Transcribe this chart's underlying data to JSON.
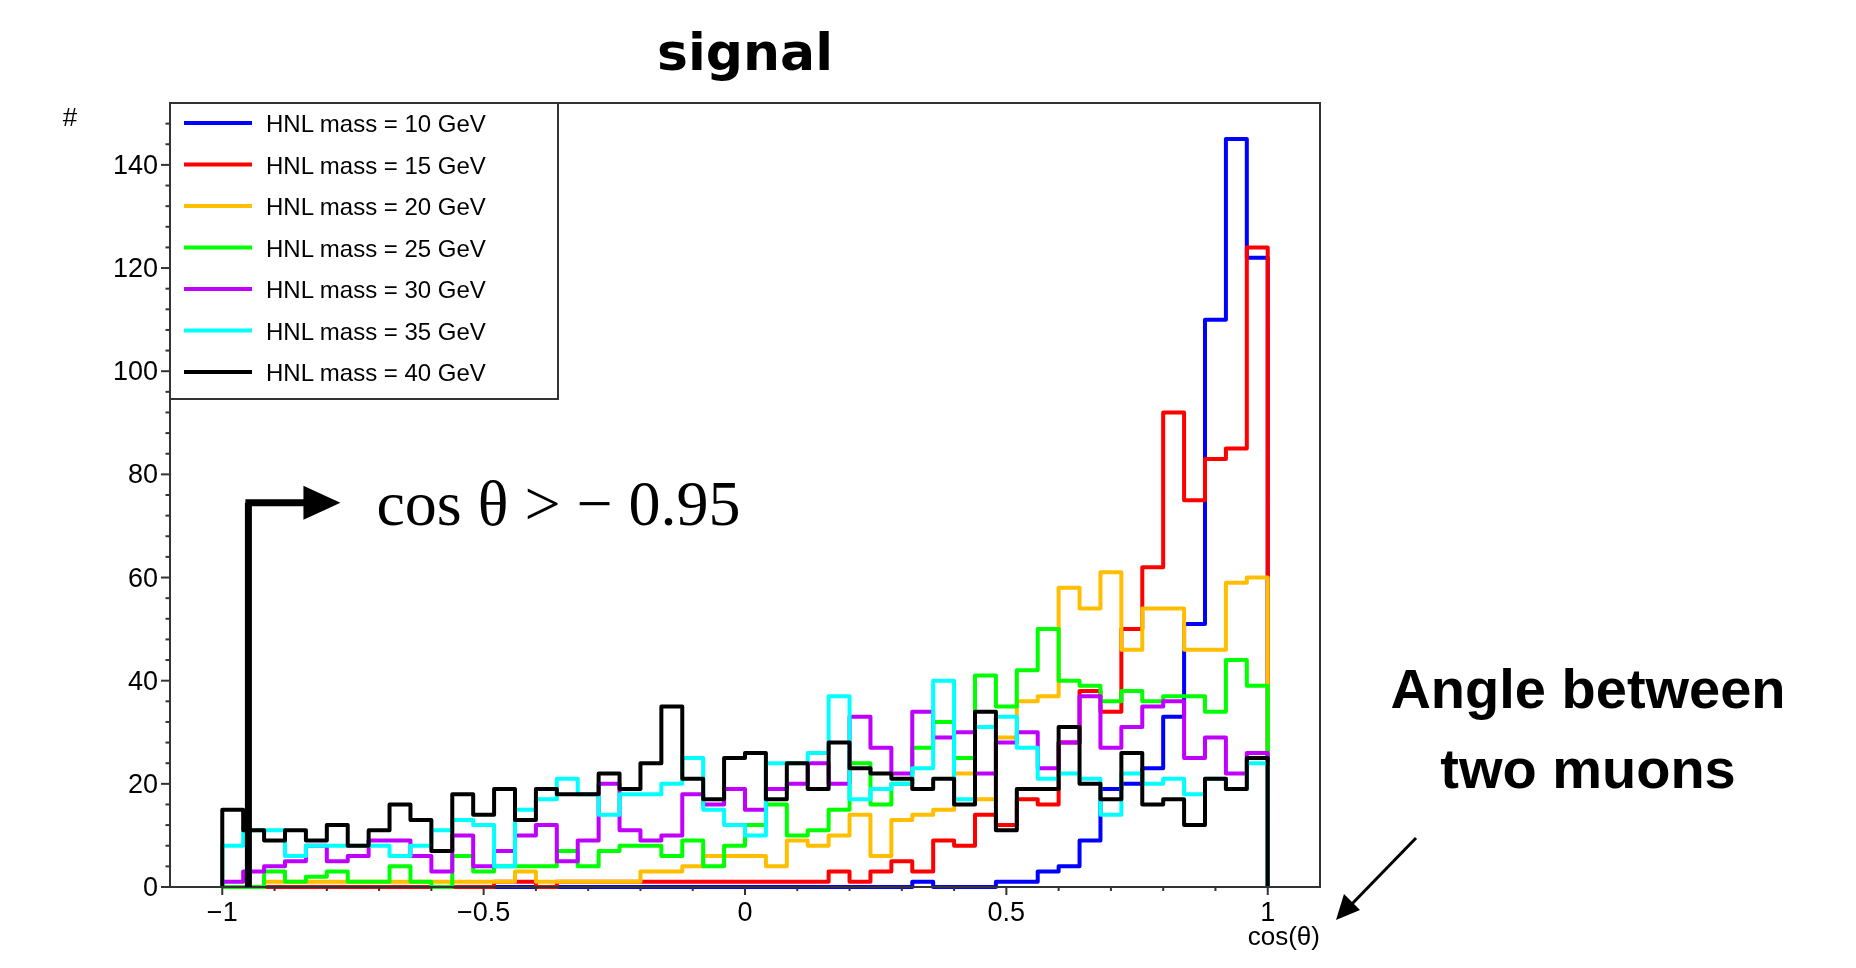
{
  "chart_data": {
    "type": "histogram",
    "title": "signal",
    "xlabel": "cos(θ)",
    "ylabel": "#",
    "bins": [
      -1,
      -0.96,
      -0.92,
      -0.88,
      -0.84,
      -0.8,
      -0.76,
      -0.72,
      -0.68,
      -0.64,
      -0.6,
      -0.56,
      -0.52,
      -0.48,
      -0.44,
      -0.4,
      -0.36,
      -0.32,
      -0.28,
      -0.24,
      -0.2,
      -0.16,
      -0.12,
      -0.08,
      -0.04,
      0,
      0.04,
      0.08,
      0.12,
      0.16,
      0.2,
      0.24,
      0.28,
      0.32,
      0.36,
      0.4,
      0.44,
      0.48,
      0.52,
      0.56,
      0.6,
      0.64,
      0.68,
      0.72,
      0.76,
      0.8,
      0.84,
      0.88,
      0.92,
      0.96,
      1
    ],
    "series": [
      {
        "name": "HNL mass = 10 GeV",
        "color": "#0000ff",
        "values": [
          0,
          0,
          0,
          0,
          0,
          0,
          0,
          0,
          0,
          0,
          0,
          0,
          0,
          0,
          0,
          0,
          0,
          0,
          0,
          0,
          0,
          0,
          0,
          0,
          0,
          0,
          0,
          0,
          0,
          0,
          0,
          0,
          0,
          1,
          0,
          0,
          0,
          1,
          1,
          3,
          4,
          9,
          19,
          20,
          23,
          33,
          51,
          110,
          145,
          122
        ]
      },
      {
        "name": "HNL mass = 15 GeV",
        "color": "#ff0000",
        "values": [
          0,
          0,
          0,
          0,
          0,
          0,
          0,
          0,
          0,
          0,
          0,
          0,
          0,
          1,
          1,
          0,
          1,
          1,
          1,
          1,
          1,
          1,
          1,
          1,
          1,
          1,
          1,
          1,
          1,
          3,
          1,
          3,
          5,
          3,
          9,
          8,
          14,
          12,
          17,
          16,
          28,
          38,
          34,
          50,
          62,
          92,
          75,
          83,
          85,
          124
        ]
      },
      {
        "name": "HNL mass = 20 GeV",
        "color": "#ffbf00",
        "values": [
          0,
          0,
          1,
          1,
          1,
          1,
          1,
          1,
          1,
          1,
          1,
          1,
          1,
          1,
          3,
          1,
          1,
          1,
          1,
          1,
          3,
          3,
          4,
          6,
          6,
          6,
          4,
          9,
          8,
          10,
          14,
          6,
          13,
          14,
          15,
          22,
          17,
          29,
          36,
          37,
          58,
          54,
          61,
          46,
          54,
          54,
          46,
          46,
          59,
          60
        ]
      },
      {
        "name": "HNL mass = 25 GeV",
        "color": "#00ff00",
        "values": [
          0,
          0,
          3,
          1,
          2,
          3,
          1,
          1,
          4,
          1,
          0,
          6,
          3,
          4,
          4,
          4,
          7,
          4,
          7,
          8,
          8,
          6,
          9,
          4,
          8,
          12,
          16,
          10,
          11,
          15,
          24,
          16,
          20,
          27,
          32,
          25,
          41,
          35,
          42,
          50,
          40,
          39,
          36,
          38,
          36,
          37,
          37,
          34,
          44,
          39
        ]
      },
      {
        "name": "HNL mass = 30 GeV",
        "color": "#bf00ff",
        "values": [
          1,
          3,
          4,
          5,
          8,
          5,
          6,
          9,
          9,
          6,
          3,
          10,
          4,
          7,
          10,
          12,
          5,
          9,
          20,
          11,
          9,
          10,
          18,
          16,
          19,
          15,
          19,
          20,
          24,
          20,
          33,
          27,
          22,
          34,
          29,
          30,
          22,
          28,
          30,
          23,
          28,
          37,
          27,
          31,
          35,
          36,
          25,
          29,
          22,
          26
        ]
      },
      {
        "name": "HNL mass = 35 GeV",
        "color": "#00ffff",
        "values": [
          8,
          11,
          11,
          6,
          8,
          8,
          8,
          8,
          6,
          8,
          11,
          13,
          12,
          4,
          15,
          17,
          21,
          18,
          14,
          18,
          18,
          20,
          25,
          15,
          12,
          10,
          24,
          24,
          26,
          37,
          17,
          19,
          20,
          23,
          40,
          17,
          31,
          33,
          27,
          21,
          22,
          21,
          14,
          22,
          20,
          21,
          18,
          21,
          19,
          24
        ]
      },
      {
        "name": "HNL mass = 40 GeV",
        "color": "#000000",
        "values": [
          15,
          11,
          9,
          11,
          9,
          12,
          8,
          11,
          16,
          13,
          7,
          18,
          14,
          19,
          13,
          19,
          18,
          18,
          22,
          19,
          24,
          35,
          21,
          17,
          25,
          26,
          17,
          24,
          19,
          28,
          23,
          22,
          21,
          19,
          21,
          16,
          34,
          11,
          19,
          19,
          31,
          20,
          17,
          26,
          16,
          17,
          12,
          21,
          19,
          25
        ]
      }
    ],
    "xlim": [
      -1.1,
      1.1
    ],
    "xticks": [
      {
        "value": -1,
        "label": "−1"
      },
      {
        "value": -0.9,
        "label": null
      },
      {
        "value": -0.8,
        "label": null
      },
      {
        "value": -0.7,
        "label": null
      },
      {
        "value": -0.6,
        "label": null
      },
      {
        "value": -0.5,
        "label": "−0.5"
      },
      {
        "value": -0.4,
        "label": null
      },
      {
        "value": -0.3,
        "label": null
      },
      {
        "value": -0.2,
        "label": null
      },
      {
        "value": -0.1,
        "label": null
      },
      0,
      {
        "value": 0.1,
        "label": null
      },
      {
        "value": 0.2,
        "label": null
      },
      {
        "value": 0.3,
        "label": null
      },
      {
        "value": 0.4,
        "label": null
      },
      0.5,
      {
        "value": 0.6,
        "label": null
      },
      {
        "value": 0.7,
        "label": null
      },
      {
        "value": 0.8,
        "label": null
      },
      {
        "value": 0.9,
        "label": null
      },
      1
    ],
    "ylim": [
      0,
      152
    ],
    "yticks": [
      0,
      {
        "value": 4,
        "label": null
      },
      {
        "value": 8,
        "label": null
      },
      {
        "value": 12,
        "label": null
      },
      {
        "value": 16,
        "label": null
      },
      20,
      {
        "value": 24,
        "label": null
      },
      {
        "value": 28,
        "label": null
      },
      {
        "value": 32,
        "label": null
      },
      {
        "value": 36,
        "label": null
      },
      40,
      {
        "value": 44,
        "label": null
      },
      {
        "value": 48,
        "label": null
      },
      {
        "value": 52,
        "label": null
      },
      {
        "value": 56,
        "label": null
      },
      60,
      {
        "value": 64,
        "label": null
      },
      {
        "value": 68,
        "label": null
      },
      {
        "value": 72,
        "label": null
      },
      {
        "value": 76,
        "label": null
      },
      80,
      {
        "value": 84,
        "label": null
      },
      {
        "value": 88,
        "label": null
      },
      {
        "value": 92,
        "label": null
      },
      {
        "value": 96,
        "label": null
      },
      100,
      {
        "value": 104,
        "label": null
      },
      {
        "value": 108,
        "label": null
      },
      {
        "value": 112,
        "label": null
      },
      {
        "value": 116,
        "label": null
      },
      120,
      {
        "value": 124,
        "label": null
      },
      {
        "value": 128,
        "label": null
      },
      {
        "value": 132,
        "label": null
      },
      {
        "value": 136,
        "label": null
      },
      140,
      {
        "value": 144,
        "label": null
      },
      {
        "value": 148,
        "label": null
      }
    ],
    "ref_lines": [
      {
        "axis": "x",
        "value": -0.95,
        "label": "cos θ > − 0.95",
        "color": "#000000"
      }
    ],
    "annotations": [
      "Angle between two muons"
    ],
    "legend": "top left",
    "grid": false
  }
}
